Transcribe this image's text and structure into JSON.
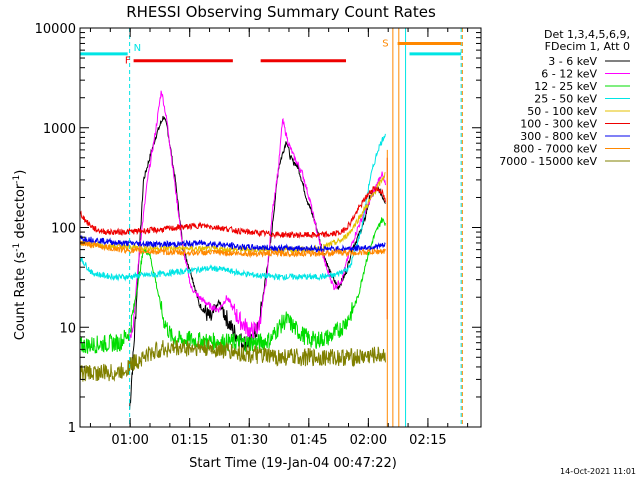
{
  "chart_data": {
    "type": "line",
    "title": "RHESSI Observing Summary Count Rates",
    "xlabel": "Start Time (19-Jan-04 00:47:22)",
    "ylabel_main": "Count Rate (s",
    "ylabel_sup1": "-1",
    "ylabel_mid": " detector",
    "ylabel_sup2": "-1",
    "ylabel_end": ")",
    "yscale": "log",
    "ylim": [
      1,
      10000
    ],
    "xlim_minutes": [
      0,
      101
    ],
    "x_unit_note": "minutes after 00:47:22",
    "yticks": [
      {
        "v": 1,
        "label": "1"
      },
      {
        "v": 10,
        "label": "10"
      },
      {
        "v": 100,
        "label": "100"
      },
      {
        "v": 1000,
        "label": "1000"
      },
      {
        "v": 10000,
        "label": "10000"
      }
    ],
    "xticks": [
      {
        "m": 12.63,
        "label": "01:00"
      },
      {
        "m": 27.63,
        "label": "01:15"
      },
      {
        "m": 42.63,
        "label": "01:30"
      },
      {
        "m": 57.63,
        "label": "01:45"
      },
      {
        "m": 72.63,
        "label": "02:00"
      },
      {
        "m": 87.63,
        "label": "02:15"
      }
    ],
    "legend": {
      "header1": "Det 1,3,4,5,6,9,",
      "header2": "FDecim 1, Att 0",
      "placement": "right"
    },
    "series": [
      {
        "name": "3 - 6 keV",
        "color": "#000000",
        "x": [
          12.5,
          13.5,
          16,
          19,
          21,
          22,
          24,
          26,
          28,
          30,
          33,
          35,
          38,
          41,
          43,
          45,
          48,
          50,
          52,
          53,
          55,
          57,
          59,
          61,
          63,
          65,
          67,
          68.5,
          70,
          71.5,
          73,
          75,
          77
        ],
        "y": [
          1.5,
          6,
          300,
          800,
          1300,
          1000,
          300,
          60,
          35,
          17,
          12,
          18,
          10,
          7,
          7,
          10,
          70,
          400,
          750,
          500,
          400,
          200,
          120,
          60,
          35,
          25,
          35,
          60,
          80,
          110,
          200,
          250,
          180
        ]
      },
      {
        "name": "6 - 12 keV",
        "color": "#ff00ff",
        "x": [
          12.5,
          13.5,
          15,
          17,
          19,
          20.5,
          22,
          24,
          26,
          28,
          30,
          33,
          35,
          37,
          40,
          43,
          45,
          47,
          48.5,
          50,
          51,
          52.5,
          54,
          56,
          58,
          60,
          62,
          64,
          66,
          68,
          70,
          72,
          74,
          76,
          77
        ],
        "y": [
          8,
          12,
          60,
          300,
          900,
          2400,
          1100,
          250,
          60,
          25,
          20,
          16,
          15,
          20,
          12,
          9,
          10,
          30,
          150,
          400,
          1200,
          700,
          500,
          350,
          180,
          80,
          40,
          25,
          30,
          60,
          100,
          150,
          230,
          350,
          260
        ]
      },
      {
        "name": "12 - 25 keV",
        "color": "#00dd00",
        "x": [
          0,
          5,
          10,
          12.5,
          14,
          16,
          17.5,
          19,
          21,
          23,
          25,
          28,
          31,
          35,
          40,
          45,
          48,
          50,
          52,
          55,
          58,
          60,
          63,
          66,
          68,
          70,
          72,
          74,
          76,
          77
        ],
        "y": [
          6.5,
          6.8,
          7,
          9,
          20,
          60,
          55,
          30,
          12,
          8,
          7.5,
          7.5,
          7.2,
          7.2,
          7.0,
          7.0,
          7.5,
          10,
          12,
          9,
          7.5,
          7.5,
          8,
          10,
          13,
          20,
          45,
          80,
          120,
          110
        ]
      },
      {
        "name": "25 - 50 keV",
        "color": "#00e5e5",
        "x": [
          0,
          3,
          6,
          9,
          12,
          15,
          20,
          25,
          30,
          33,
          36,
          40,
          45,
          50,
          55,
          60,
          64,
          68,
          71,
          73,
          75,
          77
        ],
        "y": [
          50,
          35,
          33,
          32,
          32,
          33,
          34,
          36,
          38,
          39,
          38,
          35,
          33,
          32,
          32,
          32,
          33,
          40,
          100,
          300,
          600,
          900
        ]
      },
      {
        "name": "50 - 100 keV",
        "color": "#e5c000",
        "x": [
          0,
          5,
          10,
          15,
          20,
          25,
          30,
          35,
          40,
          45,
          50,
          55,
          60,
          62,
          66,
          68,
          70,
          72,
          74,
          76,
          77
        ],
        "y": [
          70,
          66,
          64,
          63,
          62,
          62,
          61,
          61,
          60,
          60,
          60,
          60,
          61,
          65,
          75,
          90,
          120,
          160,
          220,
          300,
          350
        ]
      },
      {
        "name": "100 - 300 keV",
        "color": "#ee0000",
        "x": [
          0,
          2,
          4,
          7,
          10,
          15,
          20,
          25,
          30,
          35,
          40,
          45,
          50,
          55,
          60,
          63,
          66,
          68,
          70,
          72,
          74,
          76,
          77
        ],
        "y": [
          140,
          110,
          95,
          90,
          90,
          92,
          95,
          100,
          105,
          100,
          92,
          88,
          85,
          84,
          84,
          85,
          90,
          110,
          150,
          200,
          250,
          230,
          180
        ]
      },
      {
        "name": "300 - 800 keV",
        "color": "#0000ee",
        "x": [
          0,
          5,
          10,
          15,
          20,
          25,
          30,
          35,
          40,
          45,
          50,
          55,
          60,
          65,
          70,
          74,
          77
        ],
        "y": [
          78,
          74,
          70,
          69,
          68,
          68,
          70,
          68,
          64,
          63,
          62,
          62,
          61,
          61,
          62,
          64,
          66
        ]
      },
      {
        "name": "800 - 7000 keV",
        "color": "#ff8800",
        "x": [
          0,
          5,
          10,
          15,
          20,
          25,
          30,
          35,
          40,
          45,
          50,
          55,
          60,
          65,
          70,
          74,
          77
        ],
        "y": [
          70,
          65,
          60,
          58,
          57,
          56,
          56,
          56,
          55,
          55,
          55,
          55,
          55,
          56,
          56,
          57,
          58
        ]
      },
      {
        "name": "7000 - 15000 keV",
        "color": "#808000",
        "x": [
          0,
          5,
          10,
          12,
          14,
          16,
          18,
          20,
          25,
          30,
          35,
          40,
          45,
          50,
          55,
          60,
          65,
          70,
          74,
          77
        ],
        "y": [
          3.5,
          3.5,
          3.5,
          4,
          4.5,
          5,
          5.5,
          6,
          6.2,
          6.2,
          6,
          5.5,
          5.2,
          5,
          5,
          5,
          5,
          5,
          5.2,
          5.3
        ]
      }
    ],
    "spikes": [
      {
        "x": 77.4,
        "y_from": 12,
        "y_to": 500,
        "color": "#ee0000"
      },
      {
        "x": 77.4,
        "y_from": 1,
        "y_to": 600,
        "color": "#ff8800"
      }
    ],
    "flag_bars": [
      {
        "label": "N",
        "color": "#00e5e5",
        "y": 5500,
        "segments": [
          [
            0,
            12
          ],
          [
            83,
            96
          ]
        ],
        "marker_x": 12.5
      },
      {
        "label": "F",
        "color": "#ee0000",
        "y": 4700,
        "segments": [
          [
            13.5,
            38.5
          ],
          [
            45.5,
            67
          ]
        ],
        "marker_x": 13.5
      },
      {
        "label": "S",
        "color": "#ff8800",
        "y": 7000,
        "segments": [
          [
            80,
            96
          ]
        ],
        "marker_x": 78.5
      }
    ],
    "vlines": [
      {
        "x": 0,
        "color": "#00e5e5",
        "style": "solid"
      },
      {
        "x": 12.5,
        "color": "#00e5e5",
        "style": "dashed"
      },
      {
        "x": 78.8,
        "color": "#ff8800",
        "style": "solid"
      },
      {
        "x": 80.3,
        "color": "#ff8800",
        "style": "solid"
      },
      {
        "x": 82.0,
        "color": "#00e5e5",
        "style": "solid"
      },
      {
        "x": 96.0,
        "color": "#00e5e5",
        "style": "dashed"
      },
      {
        "x": 96.3,
        "color": "#ff8800",
        "style": "dashed"
      }
    ]
  },
  "footer": {
    "timestamp": "14-Oct-2021 11:01"
  }
}
